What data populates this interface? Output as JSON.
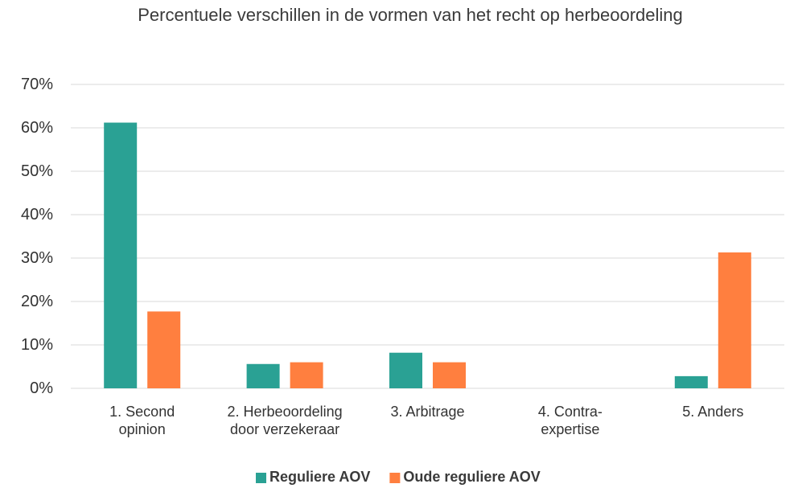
{
  "chart_data": {
    "type": "bar",
    "title": "Percentuele verschillen in de vormen van het recht op herbeoordeling",
    "categories": [
      "1. Second\nopinion",
      "2. Herbeoordeling\ndoor verzekeraar",
      "3. Arbitrage",
      "4. Contra-\nexpertise",
      "5. Anders"
    ],
    "series": [
      {
        "name": "Reguliere AOV",
        "color": "#2aa194",
        "values": [
          61.2,
          5.6,
          8.2,
          0,
          2.8
        ]
      },
      {
        "name": "Oude reguliere AOV",
        "color": "#ff7f3f",
        "values": [
          17.7,
          6.0,
          6.0,
          0,
          31.3
        ]
      }
    ],
    "ylim": [
      0,
      70
    ],
    "yticks": [
      {
        "value": 0,
        "label": "0%"
      },
      {
        "value": 10,
        "label": "10%"
      },
      {
        "value": 20,
        "label": "20%"
      },
      {
        "value": 30,
        "label": "30%"
      },
      {
        "value": 40,
        "label": "40%"
      },
      {
        "value": 50,
        "label": "50%"
      },
      {
        "value": 60,
        "label": "60%"
      },
      {
        "value": 70,
        "label": "70%"
      }
    ],
    "grid": true,
    "legend": "bottom"
  }
}
